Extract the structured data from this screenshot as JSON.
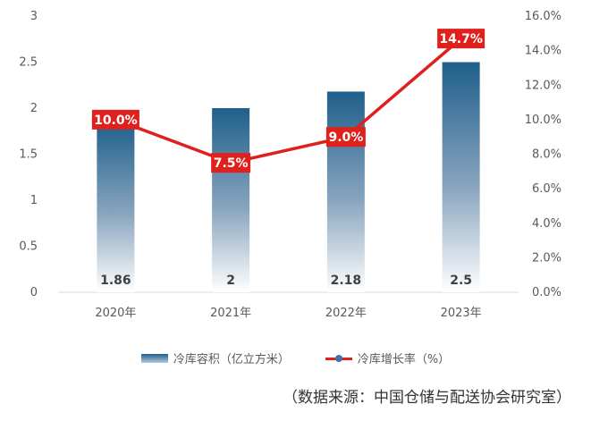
{
  "chart_data": {
    "type": "bar+line",
    "categories": [
      "2020年",
      "2021年",
      "2022年",
      "2023年"
    ],
    "series": [
      {
        "name": "冷库容积（亿立方米）",
        "type": "bar",
        "axis": "left",
        "values": [
          1.86,
          2,
          2.18,
          2.5
        ],
        "labels": [
          "1.86",
          "2",
          "2.18",
          "2.5"
        ]
      },
      {
        "name": "冷库增长率（%）",
        "type": "line",
        "axis": "right",
        "values": [
          10.0,
          7.5,
          9.0,
          14.7
        ],
        "labels": [
          "10.0%",
          "7.5%",
          "9.0%",
          "14.7%"
        ]
      }
    ],
    "y_left": {
      "min": 0,
      "max": 3,
      "ticks": [
        "0",
        "0.5",
        "1",
        "1.5",
        "2",
        "2.5",
        "3"
      ]
    },
    "y_right": {
      "min": 0,
      "max": 16,
      "ticks": [
        "0.0%",
        "2.0%",
        "4.0%",
        "6.0%",
        "8.0%",
        "10.0%",
        "12.0%",
        "14.0%",
        "16.0%"
      ]
    },
    "grid": false,
    "legend_position": "bottom"
  },
  "legend": {
    "bar_label": "冷库容积（亿立方米）",
    "line_label": "冷库增长率（%）"
  },
  "source": "（数据来源：中国仓储与配送协会研究室）",
  "colors": {
    "bar_top": "#1f5f8b",
    "bar_bottom": "#ffffff",
    "line": "#e0201c",
    "label_bg": "#e0201c"
  }
}
